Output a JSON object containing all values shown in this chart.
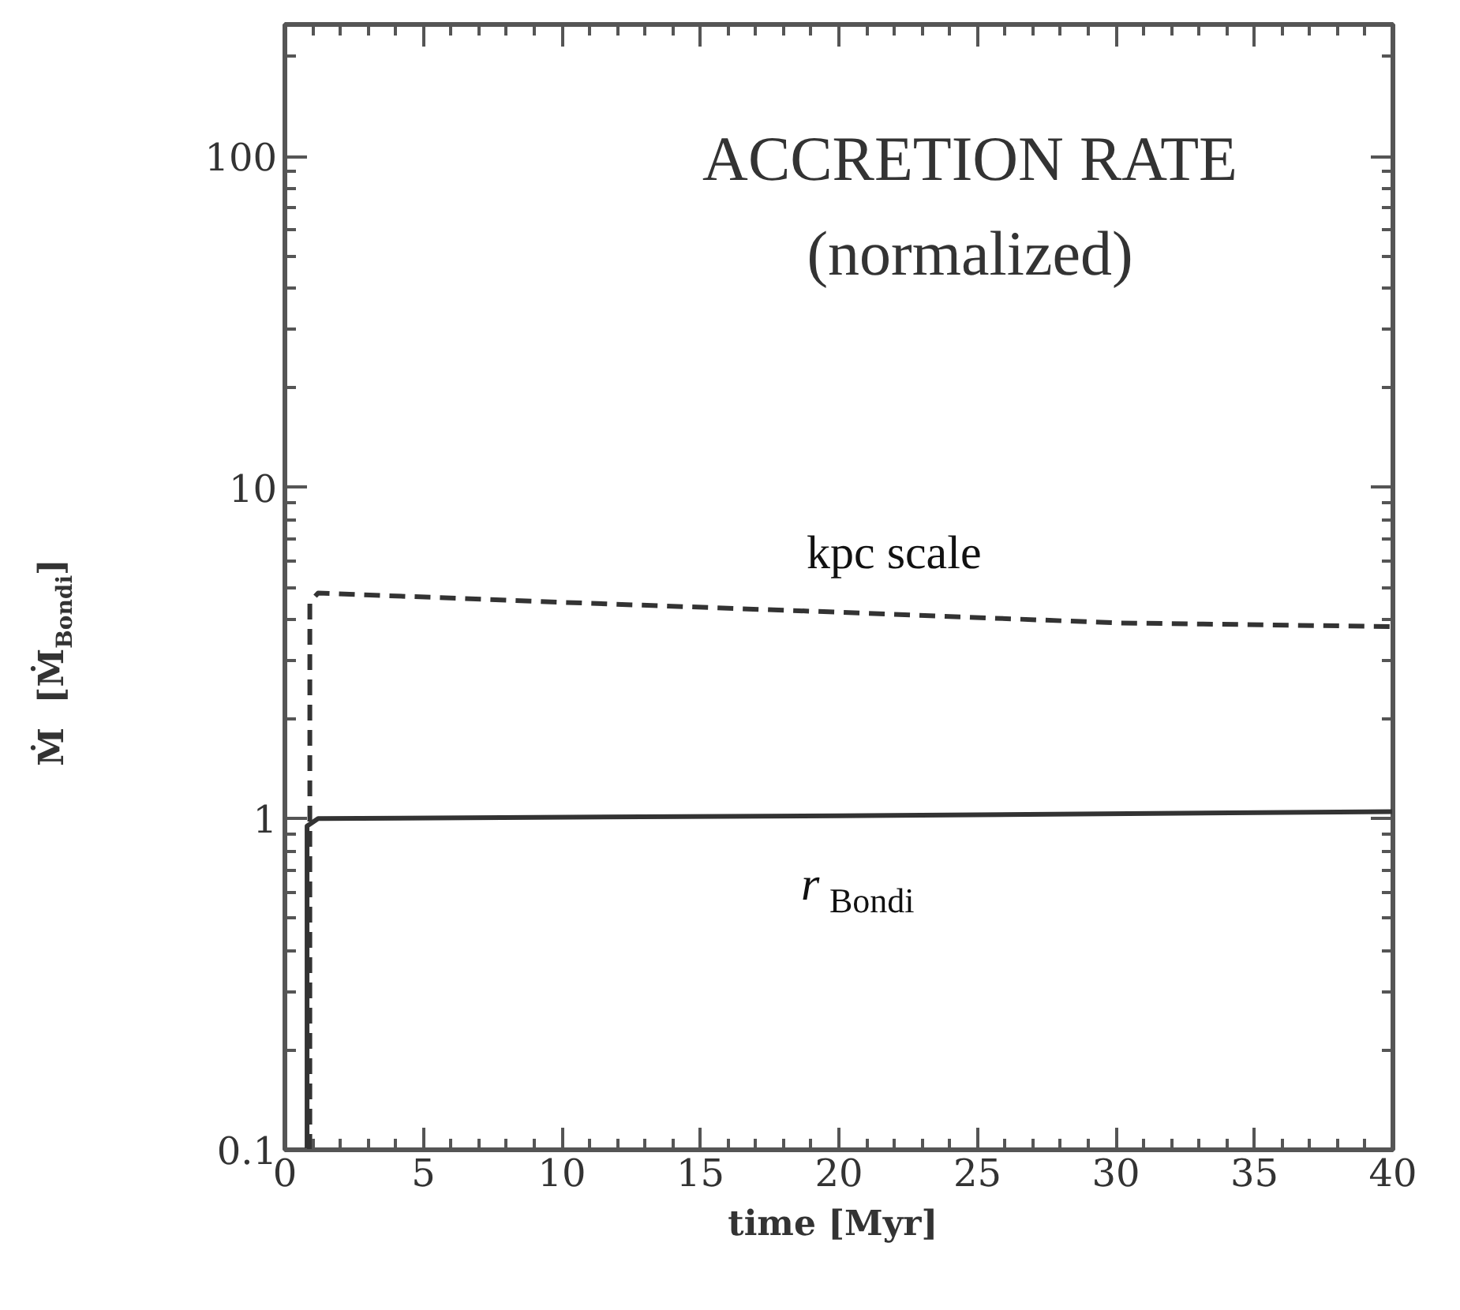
{
  "chart_data": {
    "type": "line",
    "title": "ACCRETION RATE",
    "subtitle": "(normalized)",
    "xlabel": "time  [Myr]",
    "ylabel": "Ṁ  [Ṁ$_{Bondi}$]",
    "series": [
      {
        "color": "#333333",
        "line_style": "dashed",
        "x": [
          0.9,
          0.9,
          1.2,
          10,
          20,
          30,
          40
        ],
        "values": [
          0.1,
          4.5,
          4.8,
          4.5,
          4.2,
          3.9,
          3.8
        ]
      },
      {
        "color": "#333333",
        "line_style": "solid",
        "x": [
          0.8,
          0.8,
          1.2,
          20,
          40
        ],
        "values": [
          0.1,
          0.95,
          1.0,
          1.02,
          1.05
        ]
      }
    ],
    "annotations": [
      "kpc scale",
      "r$_{Bondi}$"
    ],
    "log": "y",
    "xlim": [
      0,
      40
    ],
    "ylim": [
      0.1,
      250
    ],
    "xticks": [
      0,
      5,
      10,
      15,
      20,
      25,
      30,
      35,
      40
    ],
    "yticks": [
      0.1,
      1,
      10,
      100
    ],
    "grid": false,
    "marker": "none"
  }
}
